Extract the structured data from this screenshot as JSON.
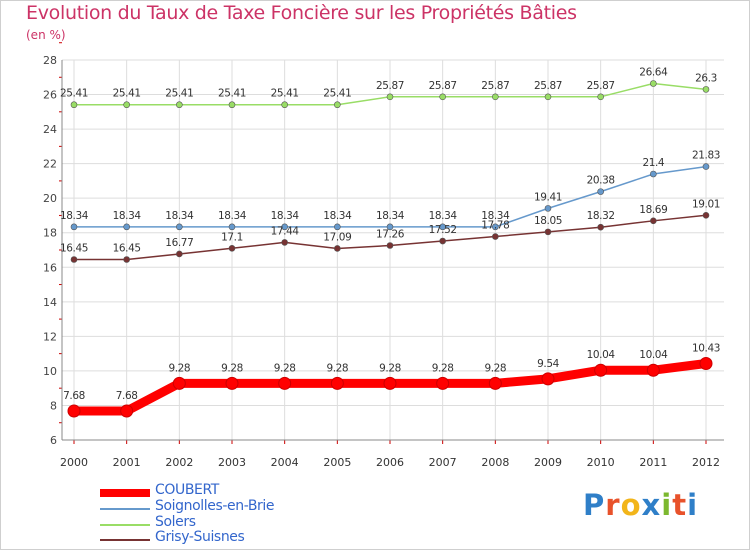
{
  "title": "Evolution du Taux de Taxe Foncière sur les Propriétés Bâties",
  "subtitle": "(en %)",
  "logo": {
    "letters": [
      {
        "ch": "P",
        "color": "#2f7fc8"
      },
      {
        "ch": "r",
        "color": "#e8522b"
      },
      {
        "ch": "o",
        "color": "#f2b51a"
      },
      {
        "ch": "x",
        "color": "#2f7fc8"
      },
      {
        "ch": "i",
        "color": "#7cb82f"
      },
      {
        "ch": "t",
        "color": "#e8522b"
      },
      {
        "ch": "i",
        "color": "#2f7fc8"
      }
    ]
  },
  "chart_data": {
    "type": "line",
    "title": "Evolution du Taux de Taxe Foncière sur les Propriétés Bâties",
    "ylabel": "(en %)",
    "xlabel": "",
    "ylim": [
      6,
      28
    ],
    "yticks": [
      "6",
      "8",
      "10",
      "12",
      "14",
      "16",
      "18",
      "20",
      "22",
      "24",
      "26",
      "28"
    ],
    "grid": true,
    "legend_position": "bottom-left",
    "categories": [
      "2000",
      "2001",
      "2002",
      "2003",
      "2004",
      "2005",
      "2006",
      "2007",
      "2008",
      "2009",
      "2010",
      "2011",
      "2012"
    ],
    "series": [
      {
        "name": "COUBERT",
        "color": "#ff0000",
        "values": [
          7.68,
          7.68,
          9.28,
          9.28,
          9.28,
          9.28,
          9.28,
          9.28,
          9.28,
          9.54,
          10.04,
          10.04,
          10.43
        ],
        "labels": [
          "7.68",
          "7.68",
          "9.28",
          "9.28",
          "9.28",
          "9.28",
          "9.28",
          "9.28",
          "9.28",
          "9.54",
          "10.04",
          "10.04",
          "10.43"
        ]
      },
      {
        "name": "Soignolles-en-Brie",
        "color": "#6699cc",
        "values": [
          18.34,
          18.34,
          18.34,
          18.34,
          18.34,
          18.34,
          18.34,
          18.34,
          18.34,
          19.41,
          20.38,
          21.4,
          21.83
        ],
        "labels": [
          "18.34",
          "18.34",
          "18.34",
          "18.34",
          "18.34",
          "18.34",
          "18.34",
          "18.34",
          "18.34",
          "19.41",
          "20.38",
          "21.4",
          "21.83"
        ]
      },
      {
        "name": "Solers",
        "color": "#99dd66",
        "values": [
          25.41,
          25.41,
          25.41,
          25.41,
          25.41,
          25.41,
          25.87,
          25.87,
          25.87,
          25.87,
          25.87,
          26.64,
          26.3
        ],
        "labels": [
          "25.41",
          "25.41",
          "25.41",
          "25.41",
          "25.41",
          "25.41",
          "25.87",
          "25.87",
          "25.87",
          "25.87",
          "25.87",
          "26.64",
          "26.3"
        ]
      },
      {
        "name": "Grisy-Suisnes",
        "color": "#773333",
        "values": [
          16.45,
          16.45,
          16.77,
          17.1,
          17.44,
          17.09,
          17.26,
          17.52,
          17.78,
          18.05,
          18.32,
          18.69,
          19.01
        ],
        "labels": [
          "16.45",
          "16.45",
          "16.77",
          "17.1",
          "17.44",
          "17.09",
          "17.26",
          "17.52",
          "17.78",
          "18.05",
          "18.32",
          "18.69",
          "19.01"
        ]
      }
    ]
  }
}
